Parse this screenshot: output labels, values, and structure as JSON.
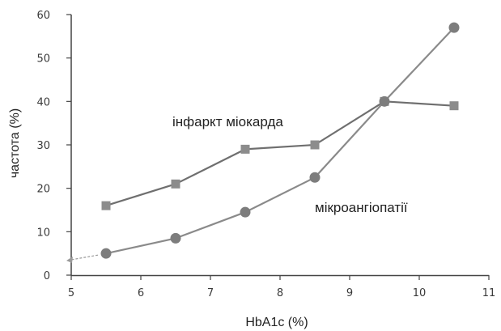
{
  "chart_data": {
    "type": "line",
    "xlabel": "HbA1c (%)",
    "ylabel": "частота (%)",
    "xlim": [
      5,
      11
    ],
    "ylim": [
      0,
      60
    ],
    "x_ticks": [
      5,
      6,
      7,
      8,
      9,
      10,
      11
    ],
    "y_ticks": [
      0,
      10,
      20,
      30,
      40,
      50,
      60
    ],
    "grid": false,
    "series": [
      {
        "name": "інфаркт міокарда",
        "marker": "square",
        "color": "#6f6f6f",
        "x": [
          5.5,
          6.5,
          7.5,
          8.5,
          9.5,
          10.5
        ],
        "y": [
          16,
          21,
          29,
          30,
          40,
          39
        ]
      },
      {
        "name": "мікроангіопатії",
        "marker": "circle",
        "color": "#8a8a8a",
        "x": [
          5.5,
          6.5,
          7.5,
          8.5,
          9.5,
          10.5
        ],
        "y": [
          5,
          8.5,
          14.5,
          22.5,
          40,
          57
        ]
      }
    ]
  }
}
